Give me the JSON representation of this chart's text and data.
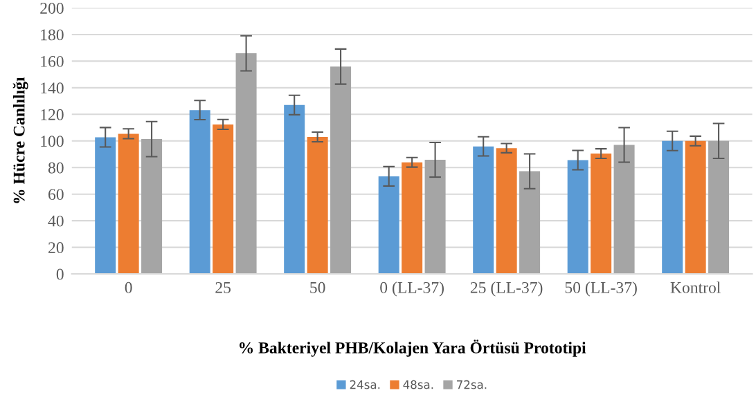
{
  "chart_data": {
    "type": "bar",
    "xlabel": "% Bakteriyel PHB/Kolajen Yara Örtüsü Prototipi",
    "ylabel": "% Hücre Canlılığı",
    "categories": [
      "0",
      "25",
      "50",
      "0 (LL-37)",
      "25 (LL-37)",
      "50 (LL-37)",
      "Kontrol"
    ],
    "series": [
      {
        "name": "24sa.",
        "color": "#5b9bd5",
        "values": [
          102.8,
          123.2,
          127,
          73.4,
          95.9,
          85.6,
          100
        ],
        "errors": [
          7.3,
          7.2,
          7.3,
          7.3,
          7.2,
          7.3,
          7.3
        ]
      },
      {
        "name": "48sa.",
        "color": "#ed7d31",
        "values": [
          105.4,
          112.4,
          103,
          83.9,
          94.6,
          90.5,
          100
        ],
        "errors": [
          3.7,
          3.7,
          3.6,
          3.6,
          3.5,
          3.6,
          3.6
        ]
      },
      {
        "name": "72sa.",
        "color": "#a5a5a5",
        "values": [
          101.4,
          165.9,
          155.9,
          85.8,
          77.2,
          97,
          100
        ],
        "errors": [
          13.2,
          13.2,
          13.2,
          13,
          13.1,
          13,
          13.1
        ]
      }
    ],
    "ylim": [
      0,
      200
    ],
    "yticks": [
      0,
      20,
      40,
      60,
      80,
      100,
      120,
      140,
      160,
      180,
      200
    ],
    "grid": "y",
    "legend": "bottom"
  }
}
